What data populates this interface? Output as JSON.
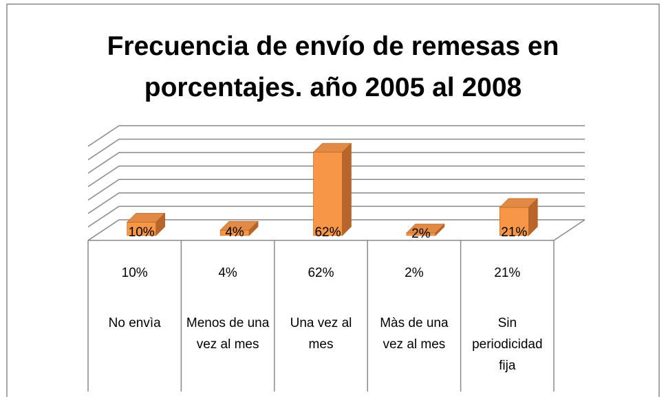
{
  "chart_data": {
    "type": "bar3d",
    "title": "Frecuencia de envío de remesas en porcentajes. año 2005 al 2008",
    "categories": [
      "No envìa",
      "Menos de una vez al mes",
      "Una vez al mes",
      "Màs de una vez al mes",
      "Sin periodicidad fija"
    ],
    "values": [
      10,
      4,
      62,
      2,
      21
    ],
    "value_labels": [
      "10%",
      "4%",
      "62%",
      "2%",
      "21%"
    ],
    "color": "#f79646",
    "ylim": [
      0,
      70
    ],
    "yticks": [
      0,
      10,
      20,
      30,
      40,
      50,
      60,
      70
    ],
    "grid": true,
    "data_table": true
  }
}
